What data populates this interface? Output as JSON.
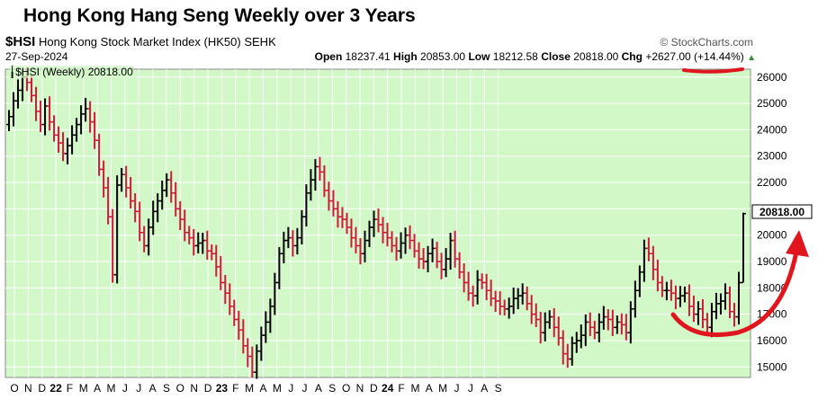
{
  "title": "Hong Kong Hang Seng Weekly over 3 Years",
  "symbol": "$HSI",
  "index_name": "Hong Kong Stock Market Index (HK50)",
  "exchange": "SEHK",
  "watermark": "© StockCharts.com",
  "date": "27-Sep-2024",
  "ohlc": {
    "open_label": "Open",
    "open": "18237.41",
    "high_label": "High",
    "high": "20853.00",
    "low_label": "Low",
    "low": "18212.58",
    "close_label": "Close",
    "close": "20818.00",
    "chg_label": "Chg",
    "chg": "+2627.00",
    "chg_pct": "(+14.44%)"
  },
  "legend": "$HSI (Weekly) 20818.00",
  "last_price_label": "20818.00",
  "colors": {
    "plot_bg": "#d2f8c8",
    "up": "#000000",
    "down": "#cc1a3a",
    "annotation": "#e0161e",
    "last_box": "#ffffff"
  },
  "chart_data": {
    "type": "ohlc",
    "interval": "weekly",
    "ylim": [
      14600,
      26300
    ],
    "yticks": [
      15000,
      16000,
      17000,
      18000,
      19000,
      20000,
      21000,
      22000,
      23000,
      24000,
      25000,
      26000
    ],
    "xticks": [
      "O",
      "N",
      "D",
      "22",
      "F",
      "M",
      "A",
      "M",
      "J",
      "J",
      "A",
      "S",
      "O",
      "N",
      "D",
      "23",
      "F",
      "M",
      "A",
      "M",
      "J",
      "J",
      "A",
      "S",
      "O",
      "N",
      "D",
      "24",
      "F",
      "M",
      "A",
      "M",
      "J",
      "J",
      "A",
      "S"
    ],
    "close_path": [
      24500,
      25100,
      25500,
      26000,
      25800,
      25300,
      24700,
      24200,
      24900,
      24300,
      23800,
      23500,
      23100,
      23400,
      23800,
      24200,
      24600,
      24800,
      24300,
      23600,
      22500,
      21800,
      20700,
      18500,
      21900,
      22300,
      21800,
      21300,
      20900,
      20100,
      19600,
      20300,
      20900,
      21300,
      21700,
      22100,
      21600,
      21000,
      20600,
      20100,
      19900,
      19600,
      19700,
      19800,
      19400,
      19300,
      18800,
      18200,
      17800,
      17300,
      16800,
      16400,
      15800,
      15400,
      14800,
      15600,
      16200,
      16700,
      17300,
      18200,
      19300,
      19800,
      19900,
      19600,
      19900,
      20700,
      21600,
      22100,
      22600,
      22400,
      21700,
      21300,
      21000,
      20700,
      20600,
      20300,
      19900,
      19600,
      19300,
      19800,
      20300,
      20600,
      20400,
      20100,
      19900,
      19600,
      19400,
      19700,
      20000,
      19800,
      19400,
      19100,
      19000,
      19300,
      19500,
      19000,
      18700,
      19100,
      19800,
      19100,
      18600,
      18200,
      17800,
      17700,
      18300,
      18200,
      17900,
      17600,
      17500,
      17300,
      17200,
      17300,
      17600,
      17700,
      17800,
      17400,
      17000,
      16800,
      16300,
      16700,
      16900,
      16500,
      16100,
      15500,
      15300,
      15900,
      16000,
      16200,
      16700,
      16500,
      16300,
      16700,
      16900,
      16800,
      16500,
      16700,
      16600,
      16300,
      17200,
      17900,
      18600,
      19500,
      19300,
      18700,
      18200,
      17900,
      17900,
      17800,
      17600,
      17700,
      17800,
      17300,
      17000,
      17200,
      16800,
      16500,
      17100,
      17400,
      17500,
      17800,
      17100,
      16900,
      18200,
      20818
    ]
  },
  "annotation": "red-curved-arrow"
}
